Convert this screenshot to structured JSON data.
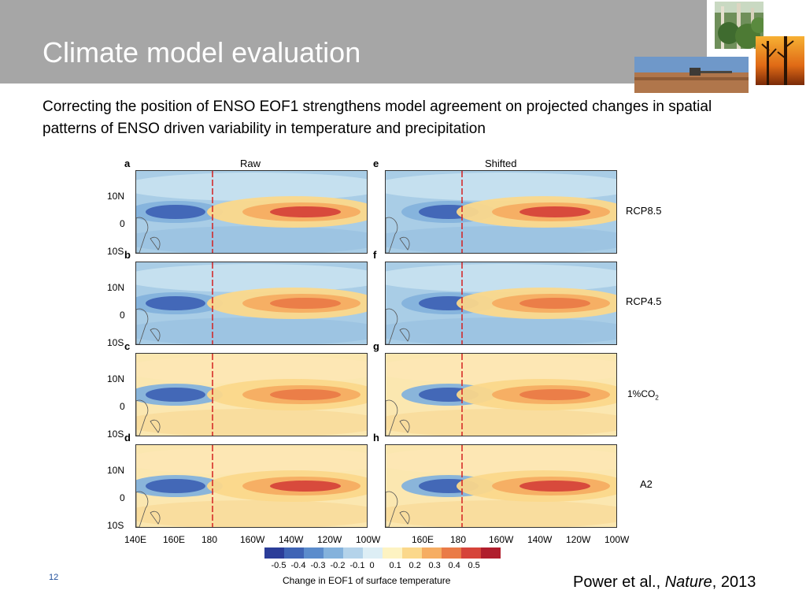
{
  "slide": {
    "title": "Climate model evaluation",
    "subtitle": "Correcting the position of ENSO EOF1 strengthens model agreement on projected changes in spatial patterns of ENSO driven variability in temperature and precipitation",
    "page_number": "12",
    "citation": {
      "authors": "Power et al., ",
      "journal": "Nature",
      "year": ", 2013"
    },
    "colors": {
      "title_bar": "#a6a6a6",
      "title_text": "#ffffff",
      "page_number": "#1f4e9a"
    }
  },
  "chart_data": {
    "type": "heatmap",
    "columns": [
      "Raw",
      "Shifted"
    ],
    "rows": [
      {
        "label": "RCP8.5",
        "panels": [
          "a",
          "e"
        ]
      },
      {
        "label": "RCP4.5",
        "panels": [
          "b",
          "f"
        ]
      },
      {
        "label": "1%CO",
        "subscript": "2",
        "panels": [
          "c",
          "g"
        ]
      },
      {
        "label": "A2",
        "panels": [
          "d",
          "h"
        ]
      }
    ],
    "lat_ticks": [
      "10N",
      "0",
      "10S"
    ],
    "lon_ticks_left": [
      "140E",
      "160E",
      "180",
      "160W",
      "140W",
      "120W",
      "100W"
    ],
    "lon_ticks_right": [
      "160E",
      "180",
      "160W",
      "140W",
      "120W",
      "100W"
    ],
    "colorbar": {
      "ticks": [
        "-0.5",
        "-0.4",
        "-0.3",
        "-0.2",
        "-0.1",
        "0",
        "0.1",
        "0.2",
        "0.3",
        "0.4",
        "0.5"
      ],
      "colors": [
        "#2b3d99",
        "#3f64b5",
        "#5b8ccc",
        "#84b2dc",
        "#b4d3ea",
        "#ddeef5",
        "#fdf3c2",
        "#fbd88b",
        "#f6ad62",
        "#ea7b47",
        "#d6443a",
        "#b01e2d"
      ],
      "title": "Change in EOF1 of surface temperature"
    }
  }
}
